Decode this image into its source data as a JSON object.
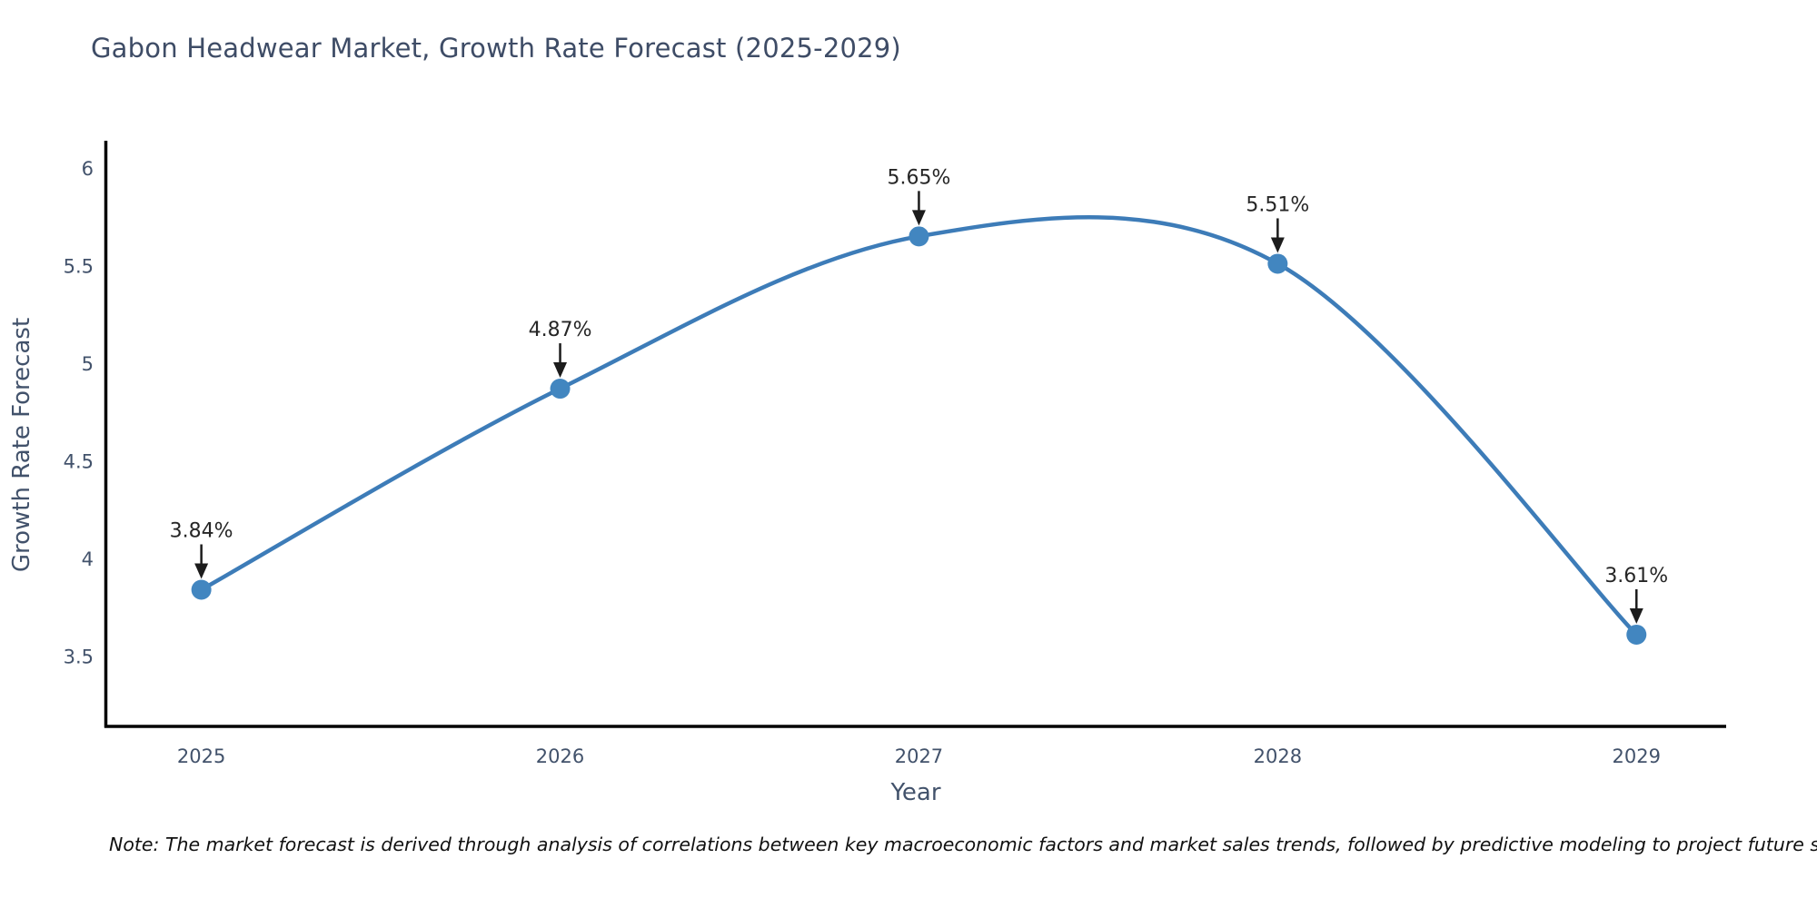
{
  "title": "Gabon Headwear Market, Growth Rate Forecast (2025-2029)",
  "note": "Note: The market forecast is derived through analysis of correlations between key macroeconomic factors and market sales trends, followed by predictive modeling to project future sales",
  "chart_data": {
    "type": "line",
    "title": "Gabon Headwear Market, Growth Rate Forecast (2025-2029)",
    "xlabel": "Year",
    "ylabel": "Growth Rate Forecast",
    "x": [
      2025,
      2026,
      2027,
      2028,
      2029
    ],
    "values": [
      3.84,
      4.87,
      5.65,
      5.51,
      3.61
    ],
    "point_labels": [
      "3.84%",
      "4.87%",
      "5.65%",
      "5.51%",
      "3.61%"
    ],
    "yticks": [
      3.5,
      4,
      4.5,
      5,
      5.5,
      6
    ],
    "ylim": [
      3.14,
      6.14
    ],
    "xlim": [
      2024.73,
      2029.25
    ],
    "grid": false,
    "legend": "none",
    "smooth": true,
    "line_color": "#3d7cb8",
    "marker_color": "#4286c0",
    "annotation_color": "#1c1c1c",
    "axis_color": "#000000",
    "tick_color": "#42526b"
  }
}
